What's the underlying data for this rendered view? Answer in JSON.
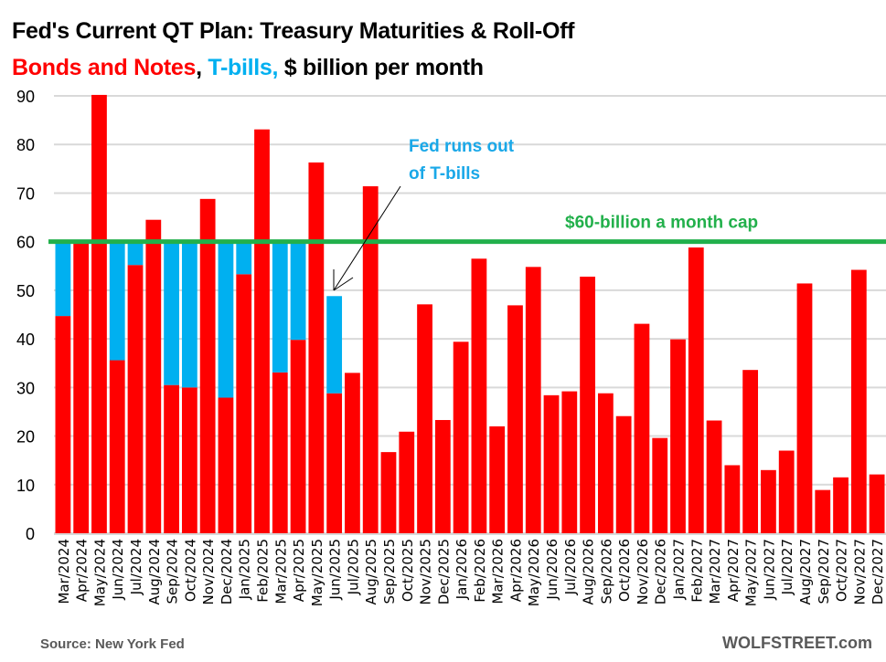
{
  "title_line1": "Fed's Current QT Plan: Treasury Maturities & Roll-Off",
  "title_line2": {
    "part1": "Bonds and Notes",
    "sep1": ", ",
    "part2": "T-bills,",
    "part3": " $ billion per month"
  },
  "source": "Source: New York Fed",
  "brand": "WOLFSTREET.com",
  "colors": {
    "bonds_notes": "#ff0000",
    "tbills": "#00b0f0",
    "cap_line": "#22b04b",
    "grid": "#d9d9d9"
  },
  "chart_data": {
    "type": "bar",
    "stacked": true,
    "title": "Fed's Current QT Plan: Treasury Maturities & Roll-Off",
    "subtitle": "Bonds and Notes, T-bills, $ billion per month",
    "xlabel": "",
    "ylabel": "",
    "ylim": [
      0,
      90
    ],
    "yticks": [
      0,
      10,
      20,
      30,
      40,
      50,
      60,
      70,
      80,
      90
    ],
    "grid": true,
    "categories": [
      "Mar/2024",
      "Apr/2024",
      "May/2024",
      "Jun/2024",
      "Jul/2024",
      "Aug/2024",
      "Sep/2024",
      "Oct/2024",
      "Nov/2024",
      "Dec/2024",
      "Jan/2025",
      "Feb/2025",
      "Mar/2025",
      "Apr/2025",
      "May/2025",
      "Jun/2025",
      "Jul/2025",
      "Aug/2025",
      "Sep/2025",
      "Oct/2025",
      "Nov/2025",
      "Dec/2025",
      "Jan/2026",
      "Feb/2026",
      "Mar/2026",
      "Apr/2026",
      "May/2026",
      "Jun/2026",
      "Jul/2026",
      "Aug/2026",
      "Sep/2026",
      "Oct/2026",
      "Nov/2026",
      "Dec/2026",
      "Jan/2027",
      "Feb/2027",
      "Mar/2027",
      "Apr/2027",
      "May/2027",
      "Jun/2027",
      "Jul/2027",
      "Aug/2027",
      "Sep/2027",
      "Oct/2027",
      "Nov/2027",
      "Dec/2027"
    ],
    "series": [
      {
        "name": "Bonds and Notes",
        "color": "#ff0000",
        "values": [
          44.7,
          60.0,
          90.2,
          35.6,
          55.2,
          64.5,
          30.5,
          30.0,
          68.8,
          27.9,
          53.3,
          83.1,
          33.1,
          39.8,
          76.3,
          28.8,
          33.0,
          71.4,
          16.7,
          20.9,
          47.1,
          23.3,
          39.4,
          56.5,
          22.0,
          46.9,
          54.8,
          28.4,
          29.2,
          52.8,
          28.8,
          24.1,
          43.1,
          19.6,
          39.9,
          58.8,
          23.2,
          14.0,
          33.6,
          13.0,
          17.0,
          51.4,
          8.9,
          11.5,
          54.2,
          12.1
        ]
      },
      {
        "name": "T-bills",
        "color": "#00b0f0",
        "values": [
          15.3,
          0,
          0,
          24.4,
          4.8,
          0,
          29.5,
          30.0,
          0,
          32.1,
          6.7,
          0,
          26.9,
          20.2,
          0,
          20.0,
          0,
          0,
          0,
          0,
          0,
          0,
          0,
          0,
          0,
          0,
          0,
          0,
          0,
          0,
          0,
          0,
          0,
          0,
          0,
          0,
          0,
          0,
          0,
          0,
          0,
          0,
          0,
          0,
          0,
          0
        ]
      }
    ],
    "reference_line": {
      "value": 60,
      "label": "$60-billion a month cap",
      "color": "#22b04b"
    },
    "annotations": [
      {
        "text_line1": "Fed runs out",
        "text_line2": "of T-bills",
        "points_to": "Jun/2025",
        "color": "#1aa8e8"
      }
    ],
    "legend": "in-subtitle"
  }
}
